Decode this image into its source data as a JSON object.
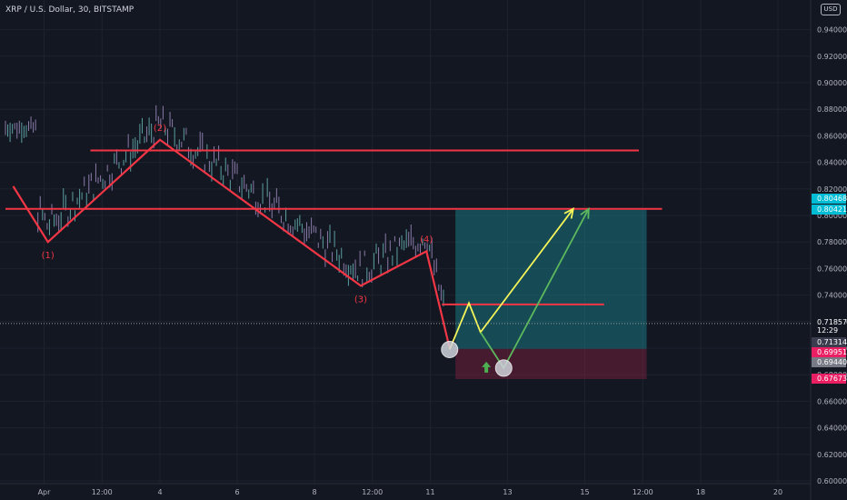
{
  "header": {
    "title": "XRP / U.S. Dollar, 30, BITSTAMP",
    "currency": "USD"
  },
  "chart_data": {
    "type": "line",
    "title": "XRP / U.S. Dollar, 30, BITSTAMP",
    "ylim": [
      0.6,
      0.96
    ],
    "y_ticks": [
      "0.60000",
      "0.62000",
      "0.64000",
      "0.66000",
      "0.68000",
      "0.70000",
      "0.72000",
      "0.74000",
      "0.76000",
      "0.78000",
      "0.80000",
      "0.82000",
      "0.84000",
      "0.86000",
      "0.88000",
      "0.90000",
      "0.92000",
      "0.94000"
    ],
    "x_ticks": [
      {
        "label": "Apr",
        "day": 1
      },
      {
        "label": "12:00",
        "day": 2.5
      },
      {
        "label": "4",
        "day": 4
      },
      {
        "label": "6",
        "day": 6
      },
      {
        "label": "8",
        "day": 8
      },
      {
        "label": "12:00",
        "day": 9.5
      },
      {
        "label": "11",
        "day": 11
      },
      {
        "label": "13",
        "day": 13
      },
      {
        "label": "15",
        "day": 15
      },
      {
        "label": "12:00",
        "day": 16.5
      },
      {
        "label": "18",
        "day": 18
      },
      {
        "label": "20",
        "day": 20
      }
    ],
    "wave_labels": [
      {
        "label": "(1)",
        "day": 1.1,
        "y": 0.78
      },
      {
        "label": "(2)",
        "day": 4.0,
        "y": 0.857
      },
      {
        "label": "(3)",
        "day": 9.2,
        "y": 0.747
      },
      {
        "label": "(4)",
        "day": 10.9,
        "y": 0.773
      }
    ],
    "wave_path": [
      {
        "day": 0.2,
        "y": 0.822
      },
      {
        "day": 1.1,
        "y": 0.78
      },
      {
        "day": 4.0,
        "y": 0.857
      },
      {
        "day": 9.2,
        "y": 0.747
      },
      {
        "day": 10.9,
        "y": 0.773
      },
      {
        "day": 11.5,
        "y": 0.7
      }
    ],
    "projection_yellow": [
      {
        "day": 11.5,
        "y": 0.699
      },
      {
        "day": 12.0,
        "y": 0.734
      },
      {
        "day": 12.3,
        "y": 0.712
      },
      {
        "day": 14.7,
        "y": 0.805
      }
    ],
    "projection_green": [
      {
        "day": 12.3,
        "y": 0.712
      },
      {
        "day": 12.9,
        "y": 0.685
      },
      {
        "day": 15.1,
        "y": 0.805
      }
    ],
    "resistance_levels": [
      {
        "y": 0.849,
        "from_day": 2.2,
        "to_day": 16.4
      },
      {
        "y": 0.805,
        "from_day": 0.0,
        "to_day": 17.0
      },
      {
        "y": 0.733,
        "from_day": 11.3,
        "to_day": 15.5
      }
    ],
    "position_box": {
      "from_day": 11.65,
      "to_day": 16.6,
      "target": 0.80421,
      "entry": 0.69951,
      "stop": 0.67673
    },
    "price_tags": [
      {
        "value": "0.80468",
        "color": "#00bcd4"
      },
      {
        "value": "0.80421",
        "color": "#00bcd4"
      },
      {
        "value": "0.71857",
        "color": "#131722"
      },
      {
        "value": "12:29",
        "color": "#131722"
      },
      {
        "value": "0.71314",
        "color": "#3b3d4e"
      },
      {
        "value": "0.69951",
        "color": "#e91e63"
      },
      {
        "value": "0.69440",
        "color": "#787b86"
      },
      {
        "value": "0.67673",
        "color": "#e91e63"
      }
    ],
    "current_price": 0.71857,
    "grid": true
  }
}
